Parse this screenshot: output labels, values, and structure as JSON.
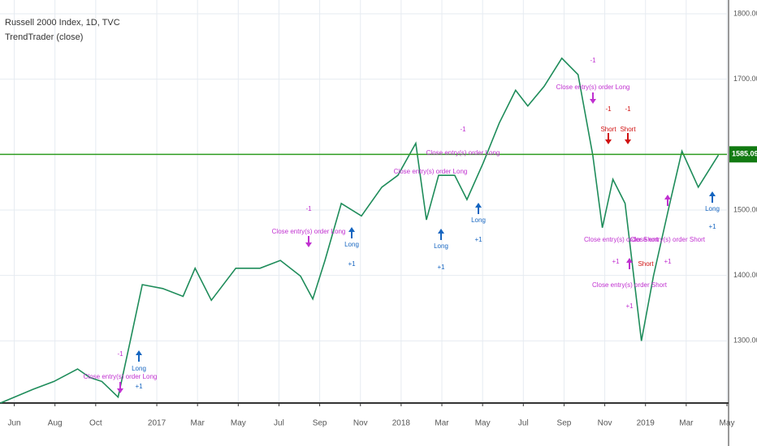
{
  "chart_data": {
    "type": "line",
    "title": "Russell 2000 Index, 1D, TVC",
    "subtitle": "TrendTrader (close)",
    "x": [
      -0.68,
      0.92,
      1.95,
      3.11,
      3.71,
      4.3,
      5.1,
      5.7,
      6.29,
      7.29,
      8.29,
      8.88,
      9.68,
      10.88,
      12.07,
      13.07,
      14.06,
      14.66,
      15.26,
      16.06,
      17.05,
      18.05,
      18.84,
      19.72,
      20.24,
      20.84,
      21.63,
      22.23,
      23.03,
      23.82,
      24.62,
      25.22,
      26.02,
      26.89,
      27.69,
      28.41,
      28.88,
      29.4,
      30,
      30.8,
      31.39,
      32.19,
      32.79,
      33.59,
      34.58
    ],
    "series": [
      {
        "color": "#1e8c5a",
        "values": [
          1205,
          1226,
          1238,
          1257,
          1244,
          1238,
          1214,
          1300,
          1386,
          1380,
          1368,
          1411,
          1362,
          1411,
          1411,
          1423,
          1399,
          1364,
          1423,
          1510,
          1491,
          1535,
          1553,
          1602,
          1485,
          1553,
          1553,
          1516,
          1572,
          1633,
          1683,
          1659,
          1689,
          1732,
          1707,
          1584,
          1473,
          1547,
          1510,
          1300,
          1399,
          1510,
          1590,
          1535,
          1584
        ]
      }
    ],
    "xlim": [
      -0.7,
      35
    ],
    "xticks": [
      {
        "value": 0,
        "label": "Jun"
      },
      {
        "value": 2,
        "label": "Aug"
      },
      {
        "value": 4,
        "label": "Oct"
      },
      {
        "value": 7,
        "label": "2017"
      },
      {
        "value": 9,
        "label": "Mar"
      },
      {
        "value": 11,
        "label": "May"
      },
      {
        "value": 13,
        "label": "Jul"
      },
      {
        "value": 15,
        "label": "Sep"
      },
      {
        "value": 17,
        "label": "Nov"
      },
      {
        "value": 19,
        "label": "2018"
      },
      {
        "value": 21,
        "label": "Mar"
      },
      {
        "value": 23,
        "label": "May"
      },
      {
        "value": 25,
        "label": "Jul"
      },
      {
        "value": 27,
        "label": "Sep"
      },
      {
        "value": 29,
        "label": "Nov"
      },
      {
        "value": 31,
        "label": "2019"
      },
      {
        "value": 33,
        "label": "Mar"
      },
      {
        "value": 35,
        "label": "May"
      }
    ],
    "ylim": [
      1205,
      1821
    ],
    "yticks": [
      {
        "value": 1300,
        "label": "1300.000"
      },
      {
        "value": 1400,
        "label": "1400.000"
      },
      {
        "value": 1500,
        "label": "1500.000"
      },
      {
        "value": 1700,
        "label": "1700.000"
      },
      {
        "value": 1800,
        "label": "1800.000"
      }
    ],
    "grid": true,
    "last_price": {
      "value": 1585.093,
      "label": "1585.093"
    },
    "annotations": [
      "Close entry(s) order Long",
      "-1",
      "Long",
      "+1",
      "Close entry(s) order Long",
      "-1",
      "Long",
      "+1",
      "Close entry(s) order Long",
      "Close entry(s) order Long",
      "-1",
      "Long",
      "+1",
      "Long",
      "+1",
      "Close entry(s) order Long",
      "-1",
      "Short",
      "-1",
      "Short",
      "-1",
      "Close entry(s) order Short",
      "+1",
      "Short",
      "Close entry(s) order Short",
      "+1",
      "Close entry(s) order Short",
      "+1",
      "Long",
      "+1"
    ]
  }
}
